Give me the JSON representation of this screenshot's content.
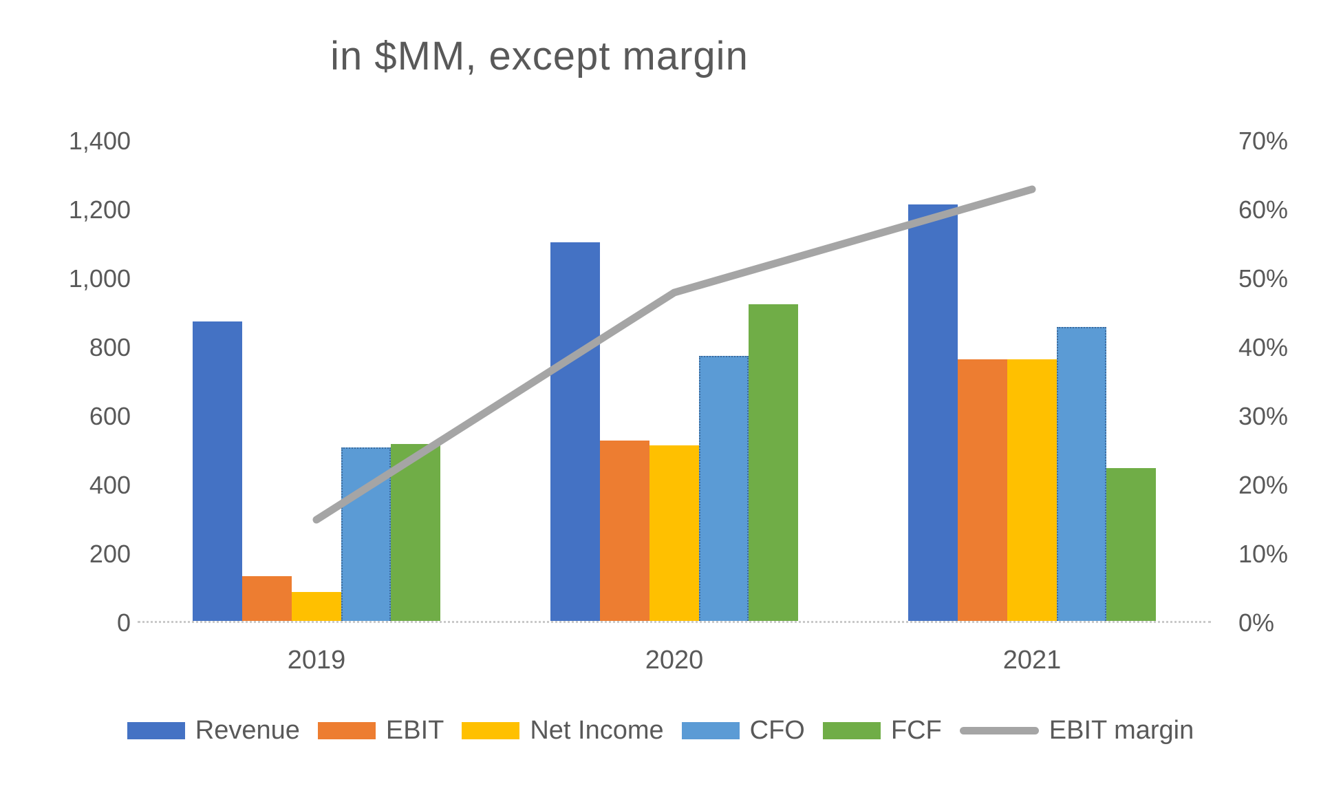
{
  "title": "in $MM, except margin",
  "chart_data": {
    "type": "bar",
    "subtype": "combo-bar-line",
    "title": "in $MM, except margin",
    "categories": [
      "2019",
      "2020",
      "2021"
    ],
    "series": [
      {
        "name": "Revenue",
        "type": "bar",
        "axis": "left",
        "color": "#4472C4",
        "values": [
          870,
          1100,
          1210
        ]
      },
      {
        "name": "EBIT",
        "type": "bar",
        "axis": "left",
        "color": "#ED7D31",
        "values": [
          130,
          525,
          760
        ]
      },
      {
        "name": "Net Income",
        "type": "bar",
        "axis": "left",
        "color": "#FFC000",
        "values": [
          85,
          510,
          760
        ]
      },
      {
        "name": "CFO",
        "type": "bar",
        "axis": "left",
        "color": "#5B9BD5",
        "values": [
          505,
          770,
          855
        ],
        "outline": "dotted"
      },
      {
        "name": "FCF",
        "type": "bar",
        "axis": "left",
        "color": "#70AD47",
        "values": [
          515,
          920,
          445
        ]
      },
      {
        "name": "EBIT margin",
        "type": "line",
        "axis": "right",
        "color": "#A5A5A5",
        "values": [
          15,
          48,
          63
        ]
      }
    ],
    "left_axis": {
      "min": 0,
      "max": 1400,
      "step": 200,
      "tick_labels": [
        "0",
        "200",
        "400",
        "600",
        "800",
        "1,000",
        "1,200",
        "1,400"
      ]
    },
    "right_axis": {
      "min": 0,
      "max": 70,
      "step": 10,
      "tick_labels": [
        "0%",
        "10%",
        "20%",
        "30%",
        "40%",
        "50%",
        "60%",
        "70%"
      ]
    },
    "legend_position": "bottom",
    "grid": "off",
    "text_color": "#595959",
    "axis_line_color": "#C9C9C9"
  }
}
